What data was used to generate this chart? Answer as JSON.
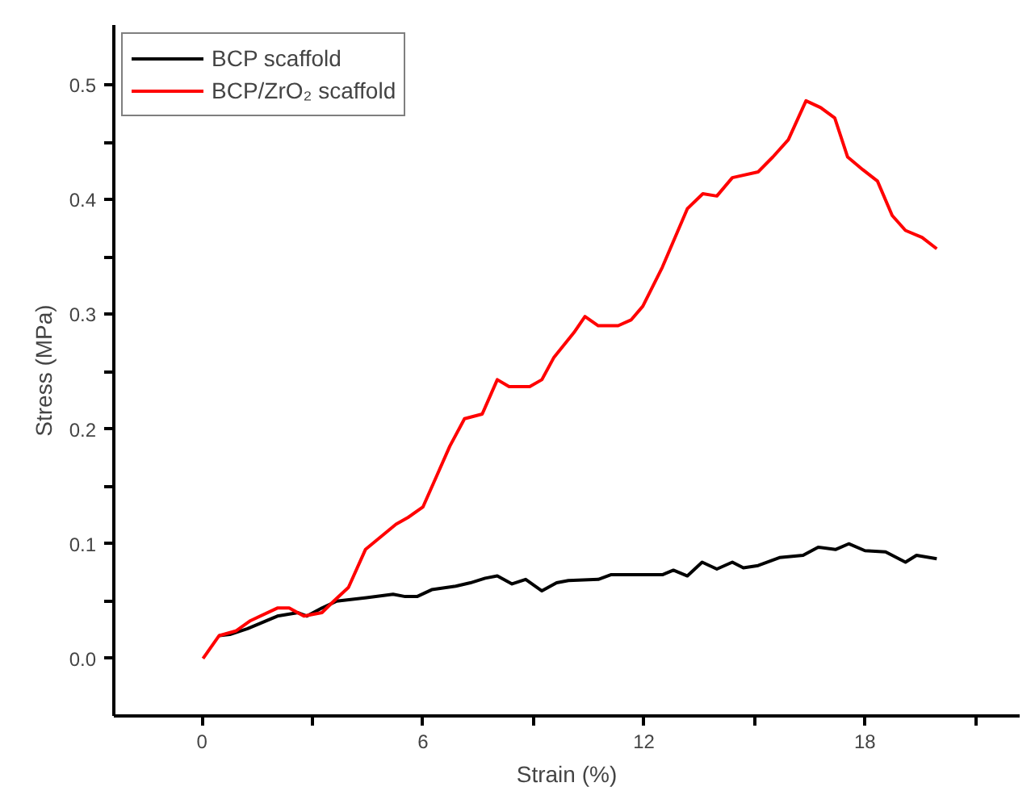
{
  "chart_data": {
    "type": "line",
    "xlabel": "Strain (%)",
    "ylabel": "Stress (MPa)",
    "xlim": [
      -2.39,
      22.2
    ],
    "ylim": [
      -0.05,
      0.552
    ],
    "xticks": [
      0,
      {
        "value": 3,
        "label": null
      },
      6,
      {
        "value": 9,
        "label": null
      },
      12,
      {
        "value": 15,
        "label": null
      },
      18,
      {
        "value": 21,
        "label": null
      }
    ],
    "yticks": [
      {
        "value": 0,
        "label": "0.0"
      },
      {
        "value": 0.05,
        "label": null
      },
      0.1,
      {
        "value": 0.15,
        "label": null
      },
      0.2,
      {
        "value": 0.25,
        "label": null
      },
      0.3,
      {
        "value": 0.35,
        "label": null
      },
      0.4,
      {
        "value": 0.45,
        "label": null
      },
      0.5
    ],
    "grid": false,
    "legend": "top left",
    "line_style": "solid",
    "marker": "none",
    "series": [
      {
        "name": "BCP scaffold",
        "color": "#000000",
        "x": [
          0.47,
          0.76,
          1.24,
          2.05,
          2.61,
          2.85,
          3.26,
          3.66,
          4.47,
          5.19,
          5.52,
          5.84,
          6.24,
          6.89,
          7.29,
          7.69,
          8.02,
          8.42,
          8.79,
          9.23,
          9.63,
          9.95,
          10.76,
          11.1,
          12.5,
          12.8,
          13.18,
          13.58,
          13.98,
          14.4,
          14.7,
          15.1,
          15.68,
          16.32,
          16.73,
          17.2,
          17.56,
          18.0,
          18.56,
          19.1,
          19.4,
          19.95
        ],
        "values": [
          0.02,
          0.021,
          0.026,
          0.037,
          0.04,
          0.037,
          0.044,
          0.05,
          0.053,
          0.056,
          0.054,
          0.054,
          0.06,
          0.063,
          0.066,
          0.07,
          0.072,
          0.065,
          0.069,
          0.059,
          0.066,
          0.068,
          0.069,
          0.073,
          0.073,
          0.077,
          0.072,
          0.084,
          0.078,
          0.084,
          0.079,
          0.081,
          0.088,
          0.09,
          0.097,
          0.095,
          0.1,
          0.094,
          0.093,
          0.084,
          0.09,
          0.087
        ]
      },
      {
        "name": "BCP/ZrO₂ scaffold",
        "color": "#ff0000",
        "x": [
          0.03,
          0.47,
          0.92,
          1.32,
          2.05,
          2.37,
          2.77,
          3.26,
          3.58,
          3.98,
          4.44,
          5.27,
          5.6,
          6.0,
          6.4,
          6.73,
          7.13,
          7.61,
          8.02,
          8.34,
          8.9,
          9.23,
          9.55,
          10.1,
          10.4,
          10.76,
          11.3,
          11.65,
          11.97,
          12.5,
          13.18,
          13.6,
          13.98,
          14.4,
          15.1,
          15.5,
          15.92,
          16.4,
          16.8,
          17.18,
          17.53,
          17.94,
          18.34,
          18.74,
          19.1,
          19.55,
          19.95
        ],
        "values": [
          0.0,
          0.02,
          0.024,
          0.033,
          0.044,
          0.044,
          0.037,
          0.04,
          0.05,
          0.062,
          0.095,
          0.117,
          0.123,
          0.132,
          0.161,
          0.185,
          0.209,
          0.213,
          0.243,
          0.237,
          0.237,
          0.243,
          0.262,
          0.284,
          0.298,
          0.29,
          0.29,
          0.295,
          0.307,
          0.341,
          0.392,
          0.405,
          0.403,
          0.419,
          0.424,
          0.437,
          0.452,
          0.486,
          0.48,
          0.471,
          0.437,
          0.426,
          0.416,
          0.386,
          0.373,
          0.367,
          0.357
        ]
      }
    ]
  }
}
